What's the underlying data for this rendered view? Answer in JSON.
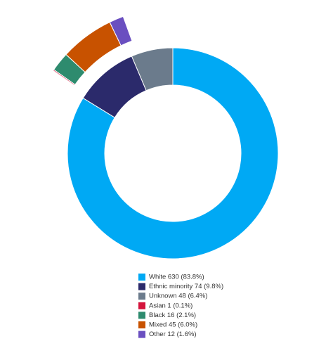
{
  "chart_data": [
    {
      "type": "donut",
      "categories": [
        "White 630 (83.8%)",
        "Ethnic minority 74 (9.8%)",
        "Unknown 48 (6.4%)"
      ],
      "values": [
        630,
        74,
        48
      ],
      "colors": [
        "#00a9f4",
        "#2b2a6b",
        "#6b7b8c"
      ]
    },
    {
      "type": "donut-detail",
      "categories": [
        "Asian 1 (0.1%)",
        "Black 16 (2.1%)",
        "Mixed 45 (6.0%)",
        "Other 12 (1.6%)"
      ],
      "values": [
        1,
        16,
        45,
        12
      ],
      "colors": [
        "#d4143c",
        "#2e8b6e",
        "#c85200",
        "#6a4fc0"
      ]
    }
  ]
}
